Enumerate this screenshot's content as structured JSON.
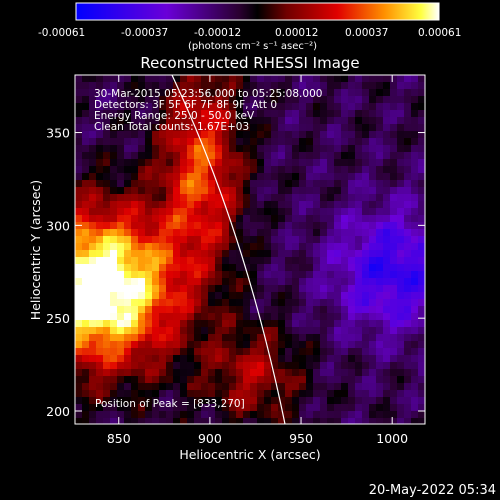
{
  "colorbar": {
    "ticks": [
      "-0.00061",
      "-0.00037",
      "-0.00012",
      "0.00012",
      "0.00037",
      "0.00061"
    ],
    "units": "(photons cm⁻² s⁻¹ asec⁻²)"
  },
  "image": {
    "title": "Reconstructed RHESSI Image",
    "info": [
      "30-Mar-2015 05:23:56.000 to 05:25:08.000",
      "Detectors: 3F 5F 6F 7F 8F 9F, Att 0",
      "Energy Range: 25.0 - 50.0 keV",
      "Clean     Total counts: 1.67E+03"
    ],
    "peak": "Position of Peak = [833,270]"
  },
  "axes": {
    "xlabel": "Heliocentric X (arcsec)",
    "ylabel": "Heliocentric Y (arcsec)",
    "xticks": [
      850,
      900,
      950,
      1000
    ],
    "yticks": [
      200,
      250,
      300,
      350
    ],
    "xlim": [
      826,
      1018
    ],
    "ylim": [
      193,
      381
    ]
  },
  "footer": {
    "timestamp": "20-May-2022 05:34"
  }
}
